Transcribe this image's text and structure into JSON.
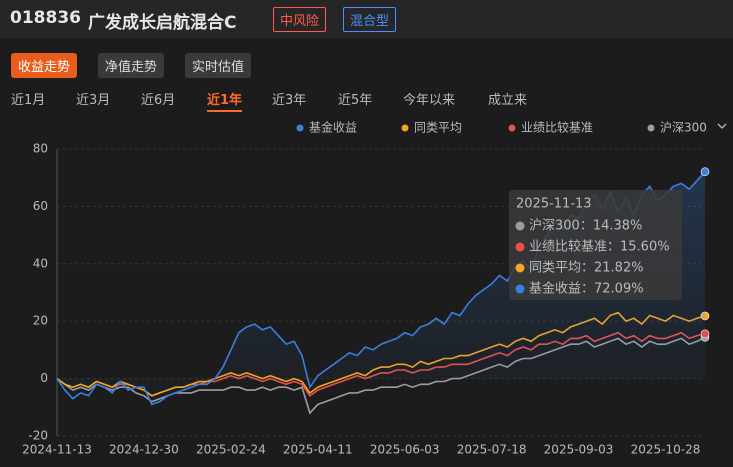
{
  "header": {
    "code": "018836",
    "name": "广发成长启航混合C",
    "tags": [
      "中风险",
      "混合型"
    ]
  },
  "tabs": [
    "收益走势",
    "净值走势",
    "实时估值"
  ],
  "periods": [
    "近1月",
    "近3月",
    "近6月",
    "近1年",
    "近3年",
    "近5年",
    "今年以来",
    "成立来"
  ],
  "chart_data": {
    "type": "line",
    "categories": [
      "2024-11-13",
      null,
      null,
      null,
      null,
      null,
      null,
      null,
      null,
      null,
      null,
      "2024-12-30",
      null,
      null,
      null,
      null,
      null,
      null,
      null,
      null,
      null,
      null,
      "2025-02-24",
      null,
      null,
      null,
      null,
      null,
      null,
      null,
      null,
      null,
      null,
      "2025-04-11",
      null,
      null,
      null,
      null,
      null,
      null,
      null,
      null,
      null,
      null,
      "2025-06-03",
      null,
      null,
      null,
      null,
      null,
      null,
      null,
      null,
      null,
      null,
      "2025-07-18",
      null,
      null,
      null,
      null,
      null,
      null,
      null,
      null,
      null,
      null,
      "2025-09-03",
      null,
      null,
      null,
      null,
      null,
      null,
      null,
      null,
      null,
      null,
      "2025-10-28",
      null,
      null,
      null,
      null,
      null
    ],
    "series": [
      {
        "name": "基金收益",
        "color": "#3a7fe0",
        "values": [
          0,
          -4,
          -7,
          -5,
          -6,
          -2,
          -3,
          -5,
          -1,
          -4,
          -3,
          -3,
          -9,
          -8,
          -6,
          -5,
          -4,
          -3,
          -2,
          -2,
          0,
          4,
          10,
          16,
          18,
          19,
          17,
          18,
          15,
          12,
          13,
          8,
          -3,
          1,
          3,
          5,
          7,
          9,
          8,
          11,
          10,
          12,
          13,
          14,
          16,
          15,
          18,
          19,
          21,
          19,
          23,
          22,
          26,
          29,
          31,
          33,
          36,
          34,
          39,
          41,
          38,
          46,
          50,
          55,
          52,
          57,
          56,
          61,
          64,
          59,
          65,
          58,
          63,
          57,
          64,
          67,
          62,
          64,
          67,
          68,
          66,
          69,
          72.09
        ]
      },
      {
        "name": "同类平均",
        "color": "#f5a623",
        "values": [
          0,
          -2,
          -3,
          -2,
          -3,
          -1,
          -2,
          -3,
          -1,
          -2,
          -3,
          -4,
          -6,
          -5,
          -4,
          -3,
          -3,
          -2,
          -1,
          -1,
          0,
          1,
          2,
          1,
          2,
          1,
          0,
          1,
          0,
          -1,
          0,
          -1,
          -5,
          -3,
          -2,
          -1,
          0,
          1,
          2,
          1,
          3,
          4,
          4,
          5,
          5,
          4,
          6,
          5,
          6,
          7,
          7,
          8,
          8,
          9,
          10,
          11,
          12,
          11,
          13,
          14,
          13,
          15,
          16,
          17,
          16,
          18,
          19,
          20,
          21,
          19,
          22,
          23,
          20,
          21,
          19,
          22,
          21,
          20,
          22,
          21,
          20,
          21,
          21.82
        ]
      },
      {
        "name": "业绩比较基准",
        "color": "#e8504f",
        "values": [
          0,
          -2,
          -3,
          -2,
          -3,
          -1,
          -2,
          -3,
          -2,
          -2,
          -3,
          -4,
          -6,
          -5,
          -4,
          -3,
          -3,
          -2,
          -2,
          -1,
          -1,
          0,
          1,
          0,
          1,
          0,
          -1,
          0,
          -1,
          -2,
          -1,
          -2,
          -6,
          -4,
          -3,
          -2,
          -1,
          0,
          1,
          0,
          1,
          2,
          2,
          3,
          3,
          2,
          3,
          3,
          4,
          4,
          5,
          5,
          5,
          6,
          7,
          8,
          9,
          8,
          10,
          11,
          10,
          12,
          12,
          13,
          12,
          14,
          14,
          15,
          13,
          14,
          15,
          16,
          14,
          15,
          13,
          15,
          14,
          14,
          15,
          16,
          14,
          15,
          15.6
        ]
      },
      {
        "name": "沪深300",
        "color": "#9e9e9e",
        "values": [
          0,
          -2,
          -4,
          -3,
          -4,
          -2,
          -3,
          -4,
          -3,
          -3,
          -5,
          -6,
          -8,
          -7,
          -6,
          -5,
          -5,
          -5,
          -4,
          -4,
          -4,
          -4,
          -3,
          -3,
          -4,
          -4,
          -3,
          -4,
          -3,
          -3,
          -4,
          -3,
          -12,
          -9,
          -8,
          -7,
          -6,
          -5,
          -5,
          -4,
          -4,
          -3,
          -3,
          -3,
          -2,
          -3,
          -2,
          -2,
          -1,
          -1,
          0,
          0,
          1,
          2,
          3,
          4,
          5,
          4,
          6,
          7,
          7,
          8,
          9,
          10,
          11,
          12,
          12,
          13,
          11,
          12,
          13,
          14,
          12,
          13,
          11,
          13,
          12,
          12,
          13,
          14,
          12,
          13,
          14.38
        ]
      }
    ],
    "ylim": [
      -20,
      80
    ],
    "yticks": [
      -20,
      0,
      20,
      40,
      60,
      80
    ],
    "grid": true,
    "tooltip": {
      "title": "2025-11-13",
      "rows": [
        {
          "text": "沪深300：14.38%",
          "color": "#9e9e9e"
        },
        {
          "text": "业绩比较基准：15.60%",
          "color": "#e8504f"
        },
        {
          "text": "同类平均：21.82%",
          "color": "#f5a623"
        },
        {
          "text": "基金收益：72.09%",
          "color": "#3a7fe0"
        }
      ]
    }
  }
}
